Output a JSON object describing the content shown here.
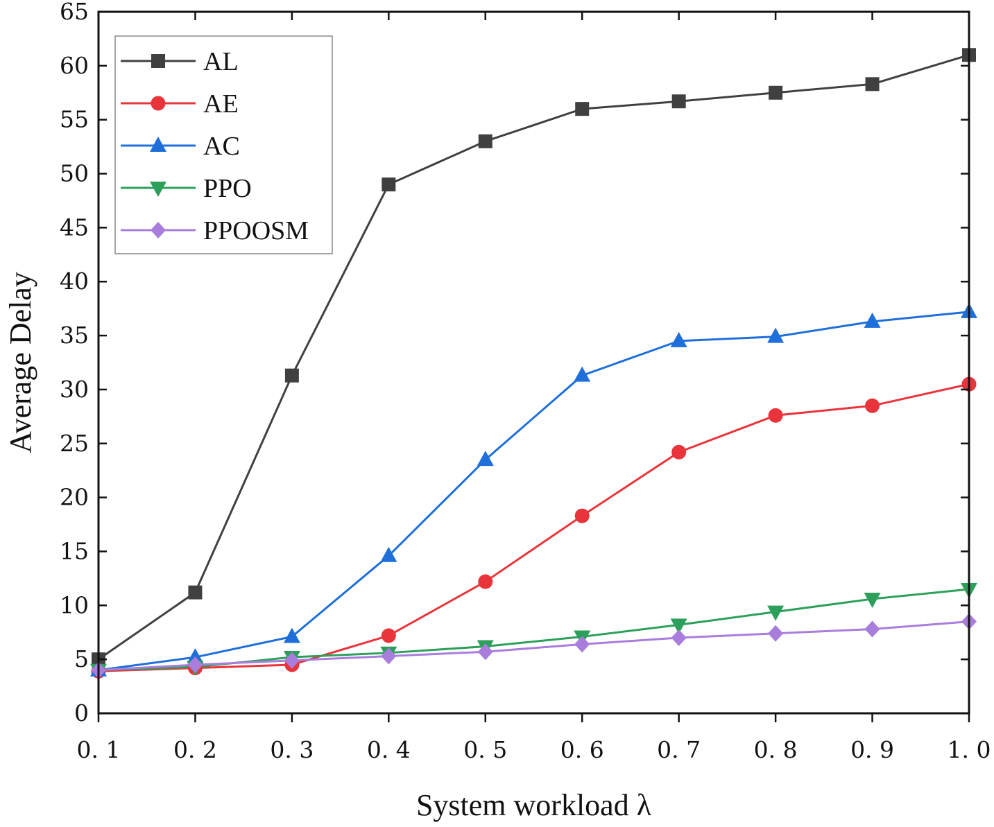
{
  "chart_data": {
    "type": "line",
    "xlabel": "System workload λ",
    "ylabel": "Average Delay",
    "x": [
      0.1,
      0.2,
      0.3,
      0.4,
      0.5,
      0.6,
      0.7,
      0.8,
      0.9,
      1.0
    ],
    "x_tick_labels": [
      "0. 1",
      "0. 2",
      "0. 3",
      "0. 4",
      "0. 5",
      "0. 6",
      "0. 7",
      "0. 8",
      "0. 9",
      "1. 0"
    ],
    "xlim": [
      0.1,
      1.0
    ],
    "ylim": [
      0,
      65
    ],
    "y_ticks": [
      0,
      5,
      10,
      15,
      20,
      25,
      30,
      35,
      40,
      45,
      50,
      55,
      60,
      65
    ],
    "grid": false,
    "legend_position": "top-left",
    "series": [
      {
        "name": "AL",
        "color": "#404040",
        "marker": "square",
        "values": [
          5.0,
          11.2,
          31.3,
          49.0,
          53.0,
          56.0,
          56.7,
          57.5,
          58.3,
          61.0
        ]
      },
      {
        "name": "AE",
        "color": "#e8343a",
        "marker": "circle",
        "values": [
          3.9,
          4.2,
          4.5,
          7.2,
          12.2,
          18.3,
          24.2,
          27.6,
          28.5,
          30.5
        ]
      },
      {
        "name": "AC",
        "color": "#1e6fd9",
        "marker": "triangle-up",
        "values": [
          4.0,
          5.2,
          7.1,
          14.6,
          23.5,
          31.3,
          34.5,
          34.9,
          36.3,
          37.2
        ]
      },
      {
        "name": "PPO",
        "color": "#2ca05a",
        "marker": "triangle-down",
        "values": [
          4.0,
          4.3,
          5.2,
          5.6,
          6.2,
          7.1,
          8.2,
          9.4,
          10.6,
          11.5
        ]
      },
      {
        "name": "PPOOSM",
        "color": "#a87ddc",
        "marker": "diamond",
        "values": [
          4.0,
          4.5,
          4.9,
          5.3,
          5.7,
          6.4,
          7.0,
          7.4,
          7.8,
          8.5
        ]
      }
    ]
  }
}
